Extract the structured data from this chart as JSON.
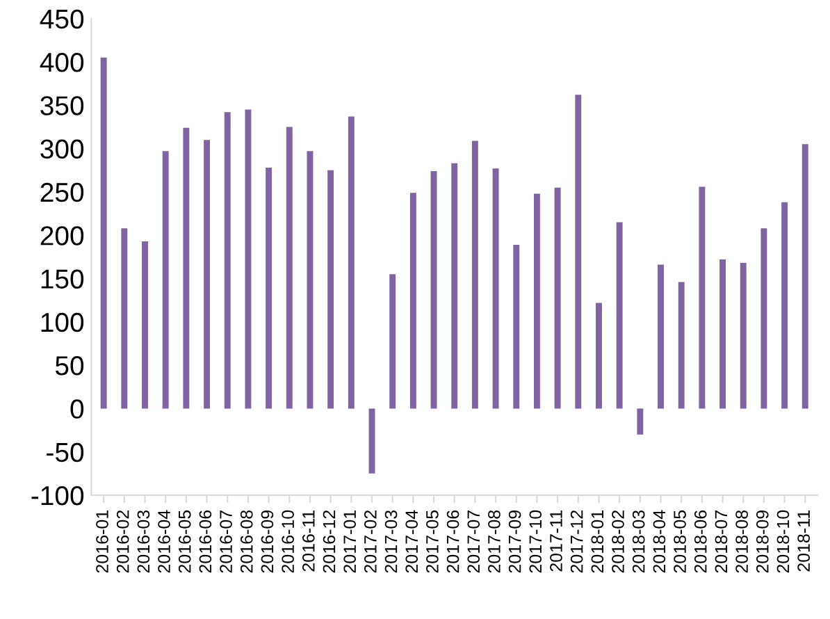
{
  "chart_data": {
    "type": "bar",
    "categories": [
      "2016-01",
      "2016-02",
      "2016-03",
      "2016-04",
      "2016-05",
      "2016-06",
      "2016-07",
      "2016-08",
      "2016-09",
      "2016-10",
      "2016-11",
      "2016-12",
      "2017-01",
      "2017-02",
      "2017-03",
      "2017-04",
      "2017-05",
      "2017-06",
      "2017-07",
      "2017-08",
      "2017-09",
      "2017-10",
      "2017-11",
      "2017-12",
      "2018-01",
      "2018-02",
      "2018-03",
      "2018-04",
      "2018-05",
      "2018-06",
      "2018-07",
      "2018-08",
      "2018-09",
      "2018-10",
      "2018-11"
    ],
    "values": [
      405,
      208,
      193,
      297,
      324,
      310,
      342,
      345,
      278,
      325,
      297,
      275,
      337,
      -75,
      155,
      249,
      274,
      283,
      309,
      277,
      189,
      248,
      255,
      362,
      122,
      215,
      -30,
      166,
      146,
      256,
      172,
      168,
      208,
      238,
      305
    ],
    "color": "#8064a2",
    "ylim": [
      -100,
      450
    ],
    "yticks": [
      -100,
      -50,
      0,
      50,
      100,
      150,
      200,
      250,
      300,
      350,
      400,
      450
    ],
    "grid": false,
    "legend": false
  }
}
